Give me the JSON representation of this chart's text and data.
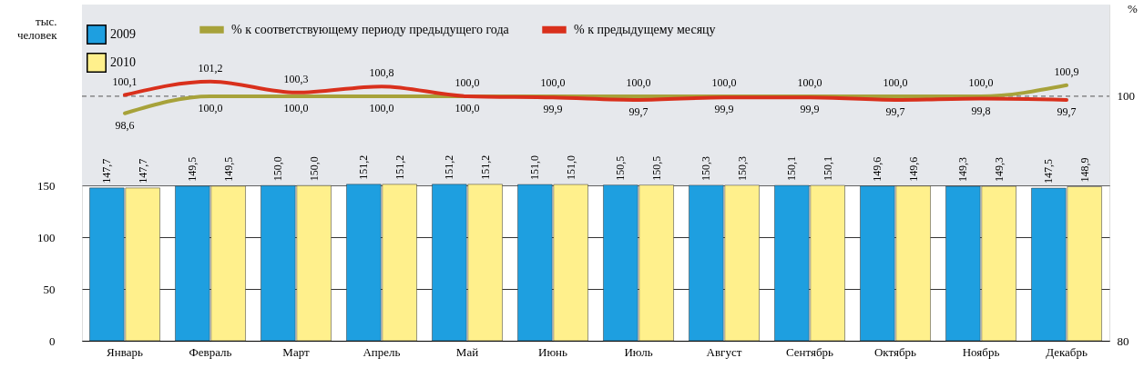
{
  "chart_data": {
    "type": "bar",
    "ylabel": "тыс. человек",
    "y2label": "%",
    "categories": [
      "Январь",
      "Февраль",
      "Март",
      "Апрель",
      "Май",
      "Июнь",
      "Июль",
      "Август",
      "Сентябрь",
      "Октябрь",
      "Ноябрь",
      "Декабрь"
    ],
    "series": [
      {
        "name": "2009",
        "color": "#1e9fe0",
        "values": [
          147.7,
          149.5,
          150.0,
          151.2,
          151.2,
          151.0,
          150.5,
          150.3,
          150.1,
          149.6,
          149.3,
          147.5
        ],
        "value_labels": [
          "147,7",
          "149,5",
          "150,0",
          "151,2",
          "151,2",
          "151,0",
          "150,5",
          "150,3",
          "150,1",
          "149,6",
          "149,3",
          "147,5"
        ]
      },
      {
        "name": "2010",
        "color": "#fff08c",
        "values": [
          147.7,
          149.5,
          150.0,
          151.2,
          151.2,
          151.0,
          150.5,
          150.3,
          150.1,
          149.6,
          149.3,
          148.9
        ],
        "value_labels": [
          "147,7",
          "149,5",
          "150,0",
          "151,2",
          "151,2",
          "151,0",
          "150,5",
          "150,3",
          "150,1",
          "149,6",
          "149,3",
          "148,9"
        ]
      },
      {
        "name": "% к соответствующему периоду предыдущего года",
        "type": "line",
        "axis": "y2",
        "color": "#a7a23a",
        "values": [
          98.6,
          100.0,
          100.0,
          100.0,
          100.0,
          100.0,
          100.0,
          100.0,
          100.0,
          100.0,
          100.0,
          100.9
        ],
        "value_labels": [
          "98,6",
          "100,0",
          "100,0",
          "100,0",
          "100,0",
          "100,0",
          "100,0",
          "100,0",
          "100,0",
          "100,0",
          "100,0",
          "100,9"
        ]
      },
      {
        "name": "% к предыдущему месяцу",
        "type": "line",
        "axis": "y2",
        "color": "#d9301c",
        "values": [
          100.1,
          101.2,
          100.3,
          100.8,
          100.0,
          99.9,
          99.7,
          99.9,
          99.9,
          99.7,
          99.8,
          99.7
        ],
        "value_labels": [
          "100,1",
          "101,2",
          "100,3",
          "100,8",
          "100,0",
          "99,9",
          "99,7",
          "99,9",
          "99,9",
          "99,7",
          "99,8",
          "99,7"
        ]
      }
    ],
    "ylim": [
      0,
      325
    ],
    "yticks": [
      0,
      50,
      100,
      150
    ],
    "y2lim": [
      80,
      107.5
    ],
    "y2ticks": [
      80,
      100
    ],
    "ref_lines": [
      {
        "axis": "y2",
        "value": 100,
        "color": "#555555",
        "line_style": "dashed"
      }
    ],
    "bands": [
      {
        "axis": "y",
        "from": 150,
        "to": 325,
        "color": "#e6e8ec"
      }
    ],
    "grid": "y",
    "legend": "top left"
  }
}
